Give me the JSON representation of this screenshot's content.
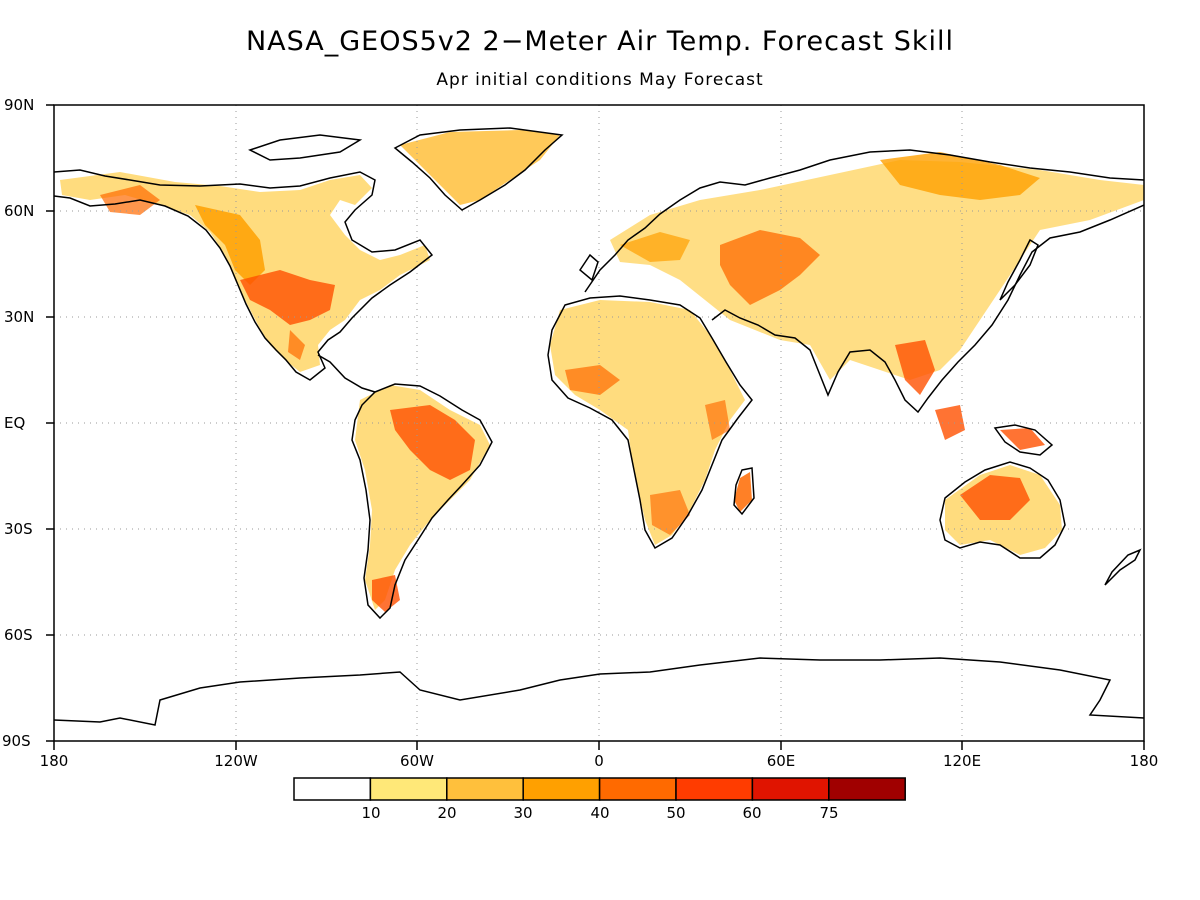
{
  "title": "NASA_GEOS5v2 2−Meter Air Temp. Forecast Skill",
  "subtitle": "Apr initial conditions  May Forecast",
  "map": {
    "lat_labels": [
      "90N",
      "60N",
      "30N",
      "EQ",
      "30S",
      "60S",
      "90S"
    ],
    "lon_labels": [
      "180",
      "120W",
      "60W",
      "0",
      "60E",
      "120E",
      "180"
    ]
  },
  "colorbar": {
    "labels": [
      "10",
      "20",
      "30",
      "40",
      "50",
      "60",
      "75"
    ],
    "colors": [
      "#ffffff",
      "#ffe878",
      "#ffc03c",
      "#ffa000",
      "#ff6a00",
      "#ff3c00",
      "#e01400",
      "#a00000"
    ]
  }
}
